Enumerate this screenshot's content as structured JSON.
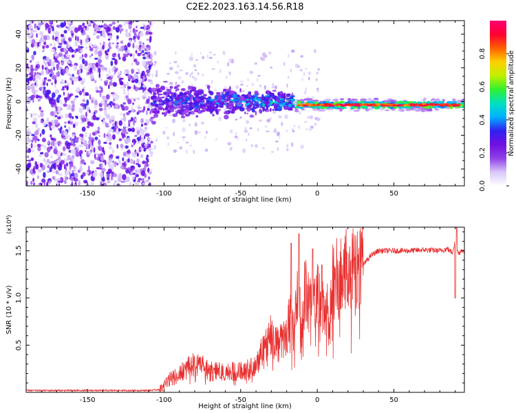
{
  "figure_title": "C2E2.2023.163.14.56.R18",
  "chart_data": [
    {
      "type": "heatmap",
      "title": "",
      "xlabel": "Height of straight line (km)",
      "ylabel": "Frequency (Hz)",
      "xlim": [
        -190,
        96
      ],
      "ylim": [
        -50,
        48
      ],
      "xticks": [
        -150,
        -100,
        -50,
        0,
        50
      ],
      "yticks": [
        -40,
        -20,
        0,
        20,
        40
      ],
      "colorbar": {
        "label": "Normalized spectral amplitude",
        "range": [
          0.0,
          1.0
        ],
        "ticks": [
          "0.0",
          "0.2",
          "0.4",
          "0.6",
          "0.8"
        ],
        "colors": [
          "#ffffff",
          "#d8c8f8",
          "#9040e8",
          "#7010e0",
          "#3020f0",
          "#00b0ff",
          "#00e0c0",
          "#30f030",
          "#c0f000",
          "#ffd000",
          "#ff6000",
          "#ff0030",
          "#ff0070"
        ]
      },
      "regions": [
        {
          "x_range": [
            -190,
            -108
          ],
          "description": "Noise",
          "max_amplitude": 0.3,
          "freq_spread": [
            -50,
            48
          ]
        },
        {
          "x_range": [
            -108,
            -15
          ],
          "description": "Scattered",
          "max_amplitude": 0.5,
          "freq_spread": [
            -15,
            15
          ]
        },
        {
          "x_range": [
            -15,
            96
          ],
          "description": "Coherent",
          "max_amplitude": 1.0,
          "center_freq": -2
        }
      ]
    },
    {
      "type": "line",
      "title": "",
      "xlabel": "Height of straight line (km)",
      "ylabel": "SNR (10 * v/v)",
      "scale_label": "(x10⁴)",
      "xlim": [
        -190,
        96
      ],
      "ylim": [
        0,
        1.75
      ],
      "xticks": [
        -150,
        -100,
        -50,
        0,
        50
      ],
      "yticks": [
        0.5,
        1.0,
        1.5
      ],
      "ytick_labels": [
        "0.5",
        "1.0",
        "1.5"
      ],
      "line_color": "#e83030",
      "series": [
        {
          "name": "SNR",
          "x": [
            -190,
            -170,
            -150,
            -130,
            -110,
            -103,
            -100,
            -95,
            -90,
            -85,
            -80,
            -75,
            -70,
            -65,
            -60,
            -55,
            -50,
            -45,
            -40,
            -35,
            -30,
            -25,
            -20,
            -18,
            -15,
            -13,
            -10,
            -8,
            -5,
            0,
            5,
            8,
            10,
            15,
            20,
            25,
            30,
            35,
            40,
            50,
            60,
            70,
            80,
            85,
            88,
            90,
            92,
            95
          ],
          "values": [
            0.02,
            0.02,
            0.02,
            0.02,
            0.02,
            0.03,
            0.08,
            0.15,
            0.2,
            0.25,
            0.3,
            0.28,
            0.22,
            0.22,
            0.2,
            0.22,
            0.22,
            0.25,
            0.3,
            0.5,
            0.6,
            0.5,
            0.6,
            0.8,
            0.7,
            0.95,
            0.7,
            1.1,
            0.9,
            1.0,
            0.8,
            0.9,
            1.15,
            1.25,
            1.3,
            1.3,
            1.35,
            1.45,
            1.5,
            1.5,
            1.5,
            1.51,
            1.5,
            1.52,
            1.48,
            1.6,
            1.48,
            1.5
          ]
        }
      ],
      "spikes": [
        {
          "x": -17,
          "value": 1.58
        },
        {
          "x": -12,
          "value": 1.68
        },
        {
          "x": -3,
          "value": 1.52
        },
        {
          "x": 3,
          "value": 1.35
        },
        {
          "x": 91,
          "value": 1.78
        },
        {
          "x": 90,
          "value": 1.0
        }
      ]
    }
  ]
}
